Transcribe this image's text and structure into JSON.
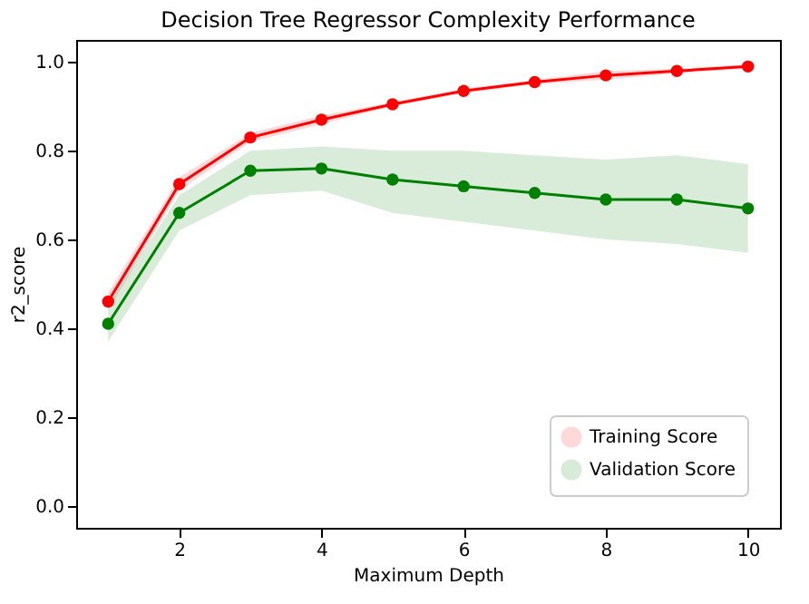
{
  "chart_data": {
    "type": "line",
    "title": "Decision Tree Regressor Complexity Performance",
    "xlabel": "Maximum Depth",
    "ylabel": "r2_score",
    "x": [
      1,
      2,
      3,
      4,
      5,
      6,
      7,
      8,
      9,
      10
    ],
    "series": [
      {
        "name": "Training Score",
        "color": "#ff0000",
        "values": [
          0.46,
          0.725,
          0.83,
          0.87,
          0.905,
          0.935,
          0.955,
          0.97,
          0.98,
          0.99
        ],
        "lower": [
          0.44,
          0.71,
          0.82,
          0.86,
          0.9,
          0.93,
          0.95,
          0.96,
          0.975,
          0.985
        ],
        "upper": [
          0.48,
          0.74,
          0.84,
          0.88,
          0.91,
          0.94,
          0.96,
          0.98,
          0.985,
          0.995
        ]
      },
      {
        "name": "Validation Score",
        "color": "#008000",
        "values": [
          0.41,
          0.66,
          0.755,
          0.76,
          0.735,
          0.72,
          0.705,
          0.69,
          0.69,
          0.67
        ],
        "lower": [
          0.37,
          0.62,
          0.7,
          0.71,
          0.66,
          0.64,
          0.62,
          0.6,
          0.59,
          0.57
        ],
        "upper": [
          0.45,
          0.7,
          0.8,
          0.81,
          0.8,
          0.8,
          0.79,
          0.78,
          0.79,
          0.77
        ]
      }
    ],
    "xlim": [
      0.55,
      10.45
    ],
    "ylim": [
      -0.05,
      1.05
    ],
    "xticks": [
      2,
      4,
      6,
      8,
      10
    ],
    "yticks": [
      {
        "value": 0,
        "label": "0.0"
      },
      {
        "value": 0.2,
        "label": "0.2"
      },
      {
        "value": 0.4,
        "label": "0.4"
      },
      {
        "value": 0.6,
        "label": "0.6"
      },
      {
        "value": 0.8,
        "label": "0.8"
      },
      {
        "value": 1,
        "label": "1.0"
      }
    ],
    "grid": false,
    "legend": "bottom right",
    "marker": "circle",
    "line_style": "solid"
  }
}
